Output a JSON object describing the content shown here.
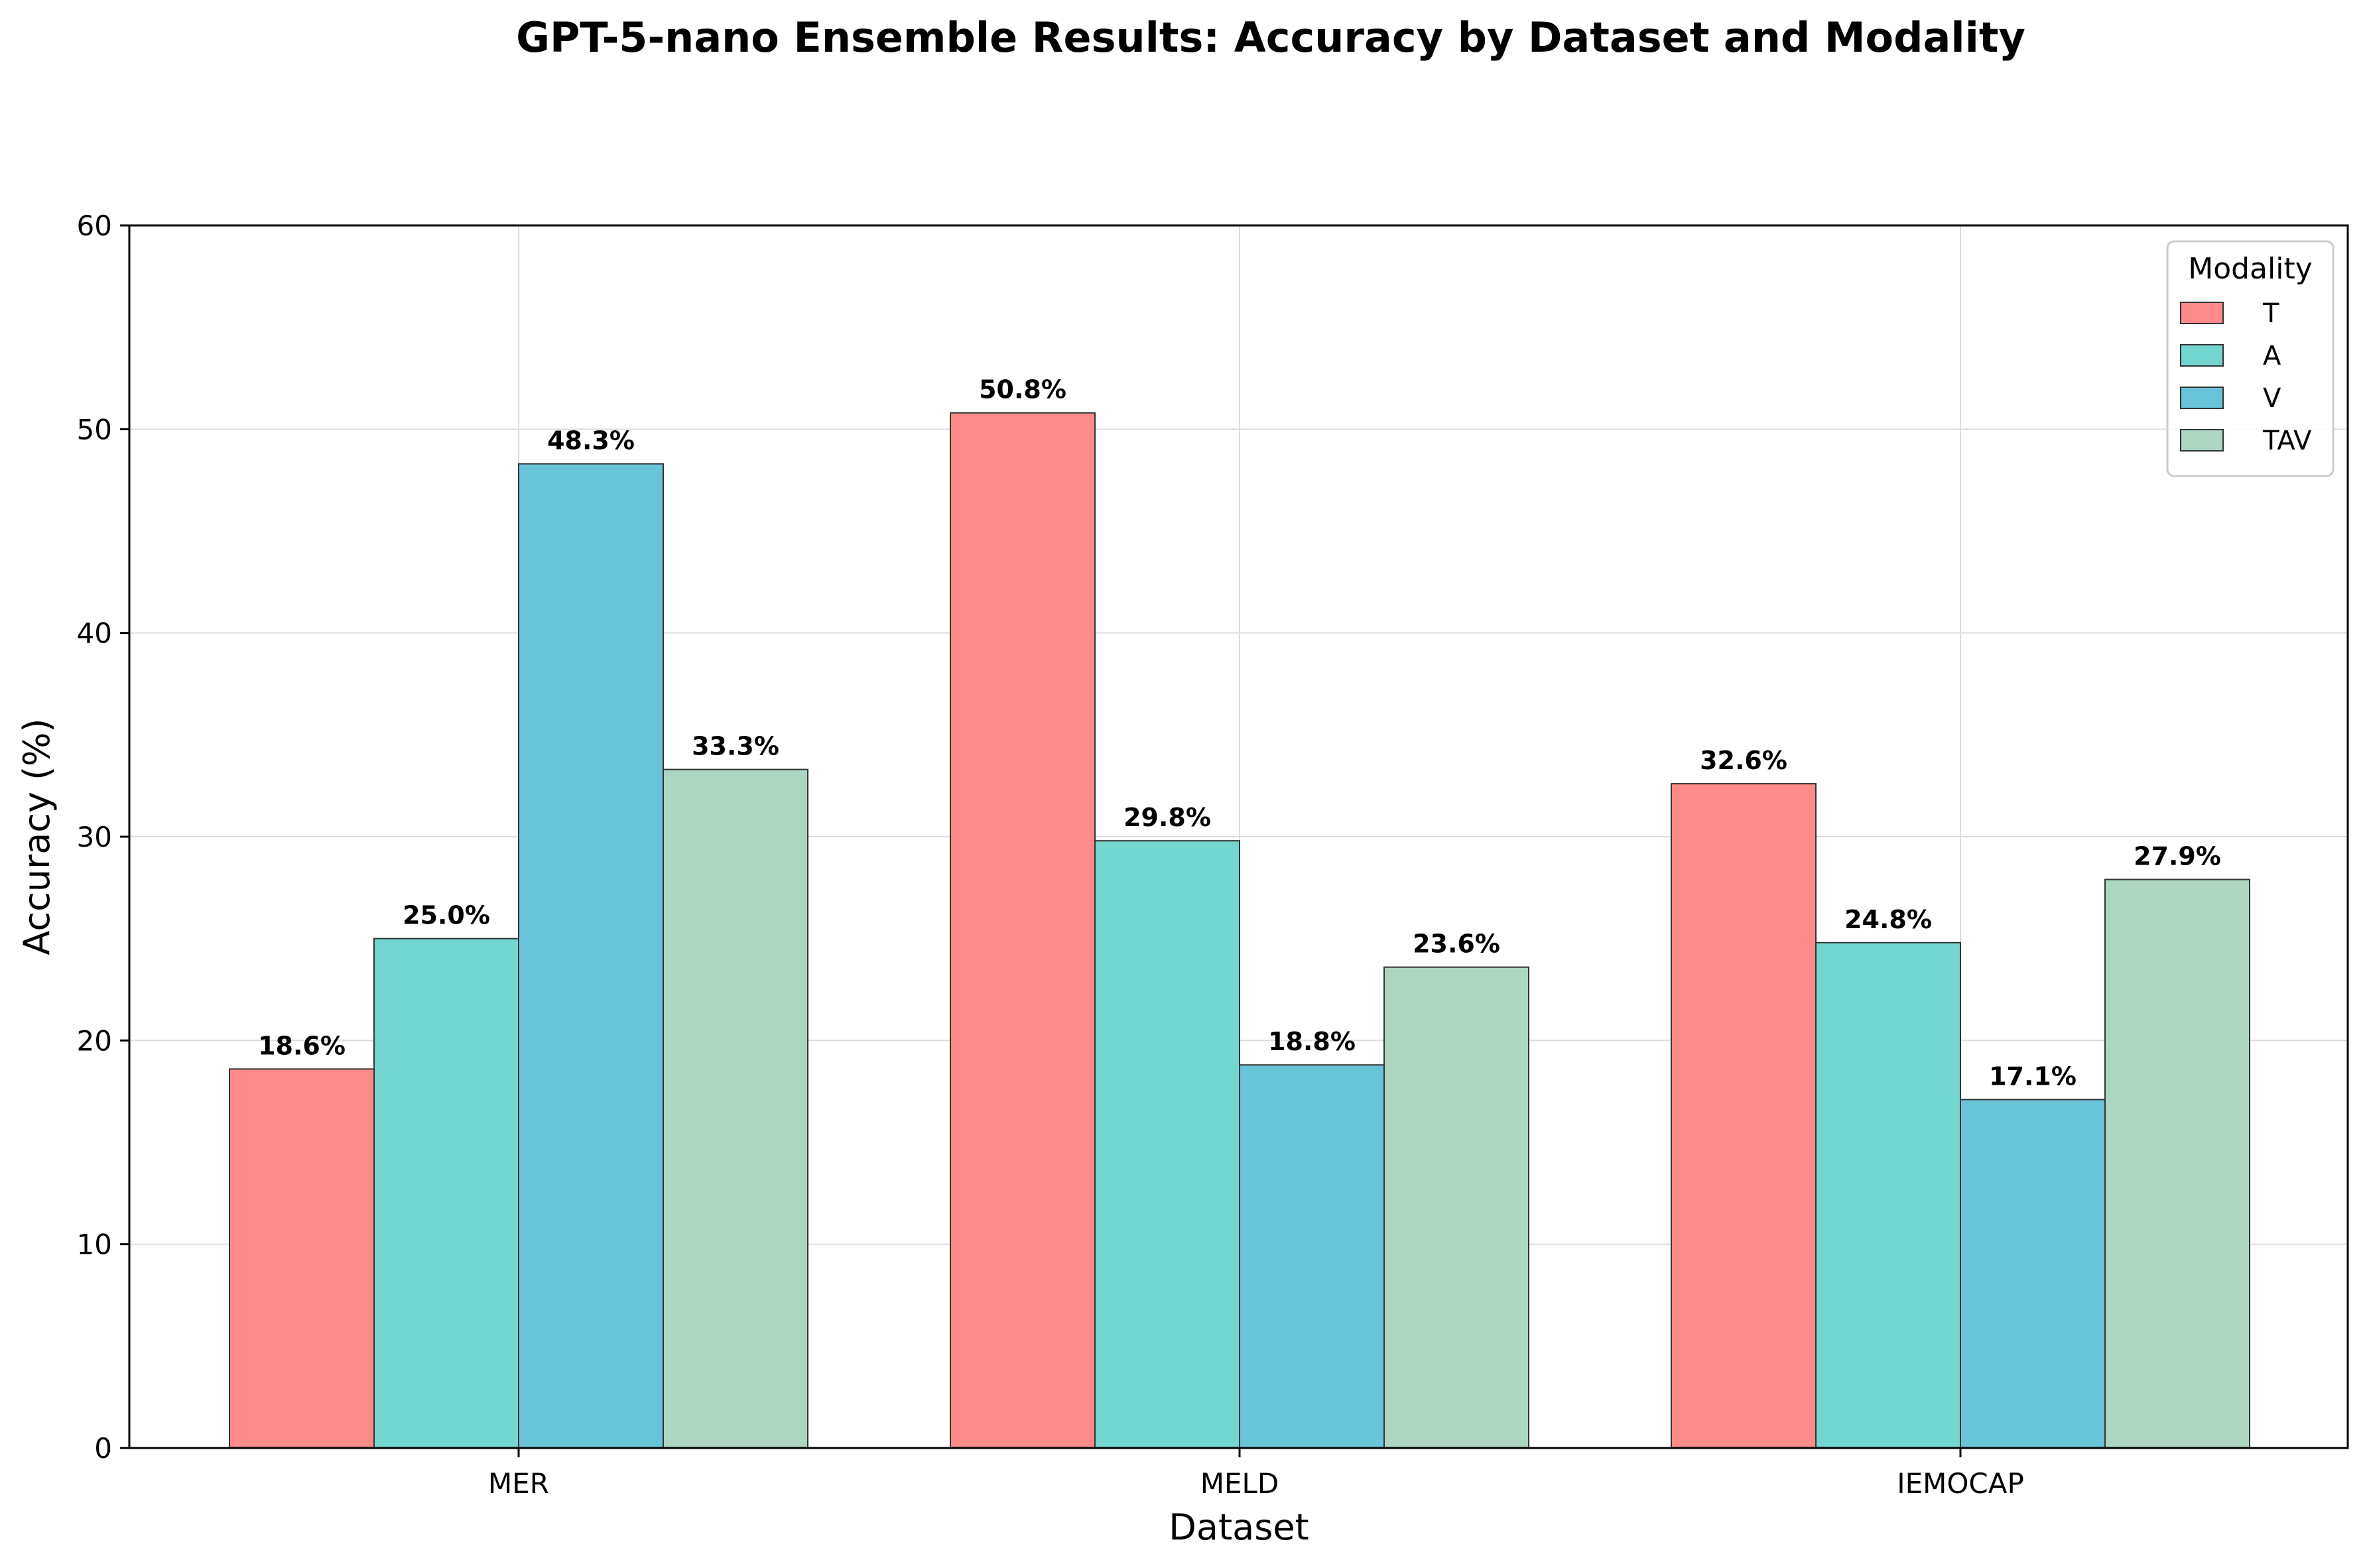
{
  "chart_data": {
    "type": "bar",
    "title": "GPT-5-nano Ensemble Results: Accuracy by Dataset and Modality",
    "xlabel": "Dataset",
    "ylabel": "Accuracy (%)",
    "ylim": [
      0,
      60
    ],
    "yticks": [
      0,
      10,
      20,
      30,
      40,
      50,
      60
    ],
    "categories": [
      "MER",
      "MELD",
      "IEMOCAP"
    ],
    "grid": true,
    "legend": {
      "title": "Modality",
      "placement": "top-right"
    },
    "series": [
      {
        "name": "T",
        "color": "#ff8a8a",
        "values": [
          18.6,
          50.8,
          32.6
        ]
      },
      {
        "name": "A",
        "color": "#73d6cf",
        "values": [
          25.0,
          29.8,
          24.8
        ]
      },
      {
        "name": "V",
        "color": "#69c3d9",
        "values": [
          48.3,
          18.8,
          17.1
        ]
      },
      {
        "name": "TAV",
        "color": "#acd6c2",
        "values": [
          33.3,
          23.6,
          27.9
        ]
      }
    ]
  }
}
